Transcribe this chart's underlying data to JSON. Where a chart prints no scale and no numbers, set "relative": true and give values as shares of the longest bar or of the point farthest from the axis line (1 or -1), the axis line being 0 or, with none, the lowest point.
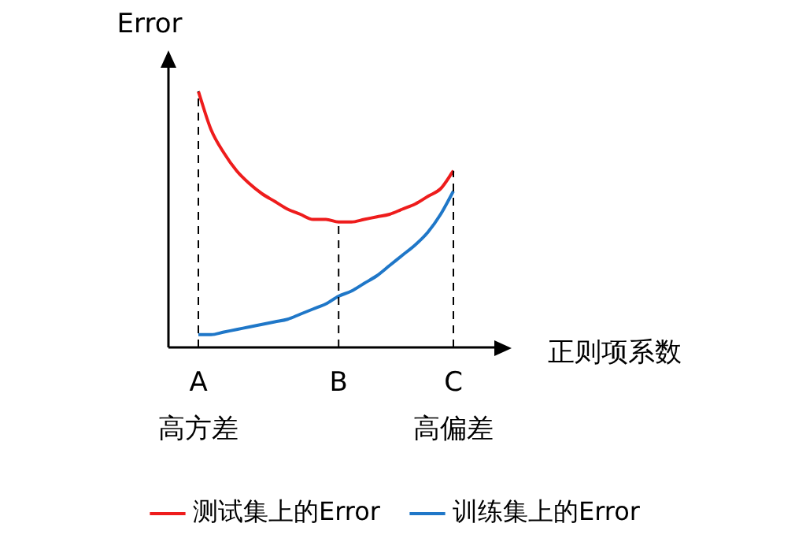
{
  "chart_data": {
    "type": "line",
    "relative": true,
    "xlabel": "正则项系数",
    "ylabel": "Error",
    "categories": [
      "A\n高方差",
      null,
      null,
      null,
      null,
      null,
      null,
      null,
      null,
      null,
      null,
      "B",
      null,
      null,
      null,
      null,
      null,
      null,
      null,
      null,
      "C\n高偏差"
    ],
    "series": [
      {
        "name": "测试集上的Error",
        "color": "#ee1c1c",
        "values": [
          1.0,
          0.85,
          0.76,
          0.69,
          0.64,
          0.6,
          0.57,
          0.54,
          0.52,
          0.5,
          0.5,
          0.49,
          0.49,
          0.5,
          0.51,
          0.52,
          0.54,
          0.56,
          0.59,
          0.62,
          0.69
        ]
      },
      {
        "name": "训练集上的Error",
        "color": "#1f77c8",
        "values": [
          0.05,
          0.05,
          0.06,
          0.07,
          0.08,
          0.09,
          0.1,
          0.11,
          0.13,
          0.15,
          0.17,
          0.2,
          0.22,
          0.25,
          0.28,
          0.32,
          0.36,
          0.4,
          0.45,
          0.52,
          0.61
        ]
      }
    ],
    "ref_lines": [
      {
        "axis": "x",
        "value": "A\n高方差",
        "line_style": "dashed"
      },
      {
        "axis": "x",
        "value": "B",
        "line_style": "dashed"
      },
      {
        "axis": "x",
        "value": "C\n高偏差",
        "line_style": "dashed"
      }
    ],
    "marker": "none",
    "line_style": "solid",
    "grid": false,
    "legend": "bottom"
  }
}
